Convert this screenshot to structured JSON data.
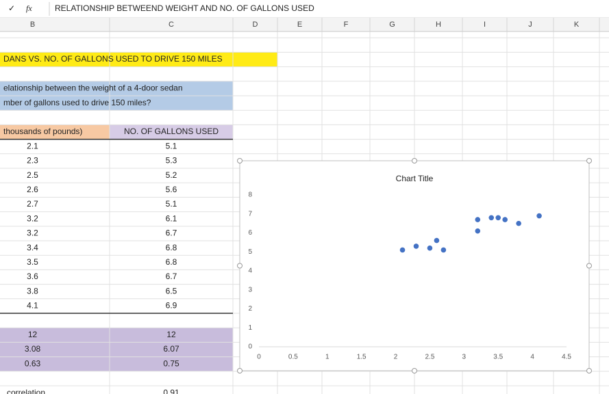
{
  "formula_bar": {
    "text": "RELATIONSHIP BETWEEND WEIGHT AND NO. OF GALLONS USED"
  },
  "columns": [
    "B",
    "C",
    "D",
    "E",
    "F",
    "G",
    "H",
    "I",
    "J",
    "K"
  ],
  "sheet": {
    "banner": "DANS VS. NO. OF GALLONS USED TO DRIVE 150 MILES",
    "question": [
      "elationship between the weight of a 4-door sedan",
      "mber of gallons used to drive 150 miles?"
    ],
    "header": [
      "thousands of pounds)",
      "NO. OF GALLONS USED"
    ],
    "stats": [
      [
        "12",
        "12"
      ],
      [
        "3.08",
        "6.07"
      ],
      [
        "0.63",
        "0.75"
      ]
    ],
    "correlation": [
      "correlation",
      "0.91"
    ]
  },
  "chart_data": {
    "type": "scatter",
    "title": "Chart Title",
    "x": [
      2.1,
      2.3,
      2.5,
      2.6,
      2.7,
      3.2,
      3.2,
      3.4,
      3.5,
      3.6,
      3.8,
      4.1
    ],
    "values": [
      5.1,
      5.3,
      5.2,
      5.6,
      5.1,
      6.1,
      6.7,
      6.8,
      6.8,
      6.7,
      6.5,
      6.9
    ],
    "color": "#4472c4",
    "xlim": [
      0,
      4.5
    ],
    "xticks": [
      0,
      0.5,
      1,
      1.5,
      2,
      2.5,
      3,
      3.5,
      4,
      4.5
    ],
    "ylim": [
      0,
      8
    ],
    "yticks": [
      0,
      1,
      2,
      3,
      4,
      5,
      6,
      7,
      8
    ],
    "grid": false
  }
}
